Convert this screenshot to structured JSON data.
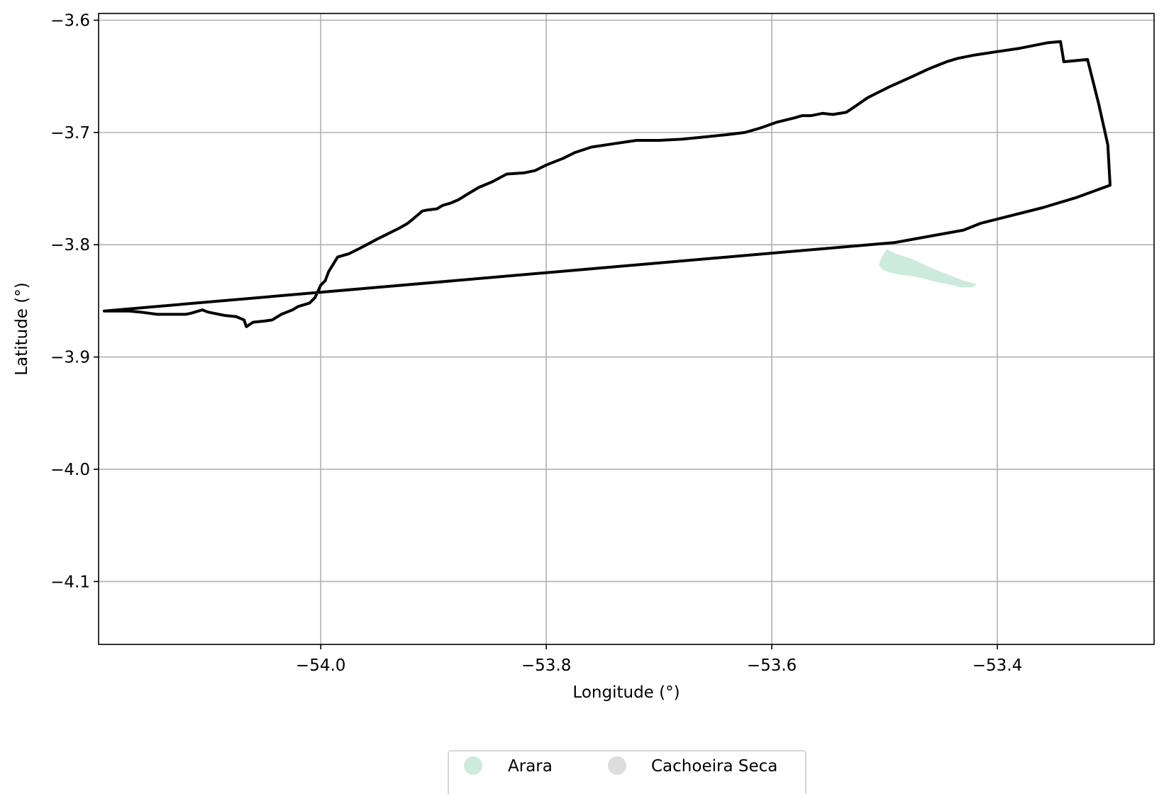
{
  "chart_data": {
    "type": "map",
    "xlabel": "Longitude (°)",
    "ylabel": "Latitude (°)",
    "xlim": [
      -54.197,
      -53.261
    ],
    "ylim": [
      -4.156,
      -3.594
    ],
    "grid": true,
    "legend_position": "bottom-center",
    "x_ticks": [
      {
        "value": -54.0,
        "label": "−54.0"
      },
      {
        "value": -53.8,
        "label": "−53.8"
      },
      {
        "value": -53.6,
        "label": "−53.6"
      },
      {
        "value": -53.4,
        "label": "−53.4"
      }
    ],
    "y_ticks": [
      {
        "value": -3.6,
        "label": "−3.6"
      },
      {
        "value": -3.7,
        "label": "−3.7"
      },
      {
        "value": -3.8,
        "label": "−3.8"
      },
      {
        "value": -3.9,
        "label": "−3.9"
      },
      {
        "value": -4.0,
        "label": "−4.0"
      },
      {
        "value": -4.1,
        "label": "−4.1"
      }
    ],
    "legend": [
      {
        "name": "Arara",
        "color": "#cdebdc"
      },
      {
        "name": "Cachoeira Seca",
        "color": "#dddddd"
      }
    ],
    "boundary": {
      "color": "#000000",
      "coordinates": [
        [
          -53.491,
          -3.798
        ],
        [
          -53.43,
          -3.787
        ],
        [
          -53.415,
          -3.781
        ],
        [
          -53.36,
          -3.767
        ],
        [
          -53.33,
          -3.758
        ],
        [
          -53.3,
          -3.747
        ],
        [
          -53.302,
          -3.711
        ],
        [
          -53.31,
          -3.675
        ],
        [
          -53.32,
          -3.635
        ],
        [
          -53.341,
          -3.637
        ],
        [
          -53.344,
          -3.619
        ],
        [
          -53.355,
          -3.62
        ],
        [
          -53.38,
          -3.625
        ],
        [
          -53.4,
          -3.628
        ],
        [
          -53.42,
          -3.631
        ],
        [
          -53.435,
          -3.634
        ],
        [
          -53.445,
          -3.637
        ],
        [
          -53.46,
          -3.643
        ],
        [
          -53.475,
          -3.65
        ],
        [
          -53.495,
          -3.659
        ],
        [
          -53.505,
          -3.664
        ],
        [
          -53.515,
          -3.669
        ],
        [
          -53.525,
          -3.676
        ],
        [
          -53.534,
          -3.682
        ],
        [
          -53.546,
          -3.684
        ],
        [
          -53.555,
          -3.683
        ],
        [
          -53.565,
          -3.685
        ],
        [
          -53.573,
          -3.685
        ],
        [
          -53.58,
          -3.687
        ],
        [
          -53.596,
          -3.691
        ],
        [
          -53.61,
          -3.696
        ],
        [
          -53.624,
          -3.7
        ],
        [
          -53.64,
          -3.702
        ],
        [
          -53.66,
          -3.704
        ],
        [
          -53.68,
          -3.706
        ],
        [
          -53.7,
          -3.707
        ],
        [
          -53.72,
          -3.707
        ],
        [
          -53.74,
          -3.71
        ],
        [
          -53.76,
          -3.713
        ],
        [
          -53.775,
          -3.718
        ],
        [
          -53.785,
          -3.723
        ],
        [
          -53.8,
          -3.729
        ],
        [
          -53.81,
          -3.734
        ],
        [
          -53.82,
          -3.736
        ],
        [
          -53.835,
          -3.737
        ],
        [
          -53.848,
          -3.744
        ],
        [
          -53.86,
          -3.749
        ],
        [
          -53.87,
          -3.755
        ],
        [
          -53.878,
          -3.76
        ],
        [
          -53.885,
          -3.763
        ],
        [
          -53.892,
          -3.765
        ],
        [
          -53.897,
          -3.768
        ],
        [
          -53.905,
          -3.769
        ],
        [
          -53.91,
          -3.77
        ],
        [
          -53.918,
          -3.777
        ],
        [
          -53.923,
          -3.781
        ],
        [
          -53.93,
          -3.785
        ],
        [
          -53.94,
          -3.79
        ],
        [
          -53.95,
          -3.795
        ],
        [
          -53.965,
          -3.803
        ],
        [
          -53.975,
          -3.808
        ],
        [
          -53.985,
          -3.811
        ],
        [
          -53.993,
          -3.824
        ],
        [
          -53.996,
          -3.832
        ],
        [
          -54.0,
          -3.836
        ],
        [
          -54.005,
          -3.847
        ],
        [
          -54.01,
          -3.852
        ],
        [
          -54.02,
          -3.855
        ],
        [
          -54.025,
          -3.858
        ],
        [
          -54.035,
          -3.862
        ],
        [
          -54.043,
          -3.867
        ],
        [
          -54.05,
          -3.868
        ],
        [
          -54.06,
          -3.869
        ],
        [
          -54.066,
          -3.873
        ],
        [
          -54.068,
          -3.867
        ],
        [
          -54.075,
          -3.864
        ],
        [
          -54.085,
          -3.863
        ],
        [
          -54.09,
          -3.862
        ],
        [
          -54.1,
          -3.86
        ],
        [
          -54.105,
          -3.858
        ],
        [
          -54.115,
          -3.861
        ],
        [
          -54.12,
          -3.862
        ],
        [
          -54.13,
          -3.862
        ],
        [
          -54.145,
          -3.862
        ],
        [
          -54.16,
          -3.86
        ],
        [
          -54.17,
          -3.859
        ],
        [
          -54.18,
          -3.859
        ],
        [
          -54.192,
          -3.859
        ]
      ]
    },
    "arara_patch": {
      "color": "#cdebdc",
      "coordinates": [
        [
          -53.498,
          -3.804
        ],
        [
          -53.49,
          -3.808
        ],
        [
          -53.475,
          -3.813
        ],
        [
          -53.46,
          -3.82
        ],
        [
          -53.445,
          -3.826
        ],
        [
          -53.43,
          -3.832
        ],
        [
          -53.418,
          -3.835
        ],
        [
          -53.422,
          -3.838
        ],
        [
          -53.432,
          -3.838
        ],
        [
          -53.445,
          -3.835
        ],
        [
          -53.455,
          -3.833
        ],
        [
          -53.466,
          -3.83
        ],
        [
          -53.475,
          -3.828
        ],
        [
          -53.485,
          -3.827
        ],
        [
          -53.495,
          -3.825
        ],
        [
          -53.502,
          -3.822
        ],
        [
          -53.505,
          -3.818
        ],
        [
          -53.503,
          -3.812
        ]
      ]
    }
  }
}
